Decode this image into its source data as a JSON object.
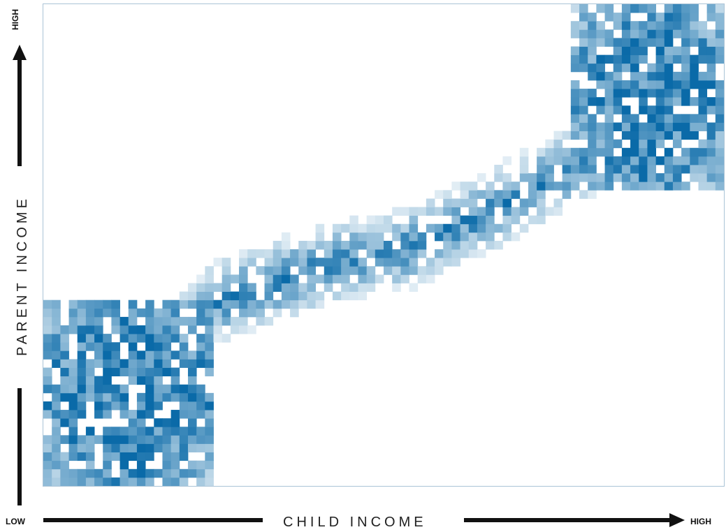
{
  "chart_data": {
    "type": "heatmap",
    "title": "",
    "xlabel": "CHILD INCOME",
    "ylabel": "PARENT INCOME",
    "x_low_label": "LOW",
    "x_high_label": "HIGH",
    "y_high_label": "HIGH",
    "xlim": [
      0,
      100
    ],
    "ylim": [
      0,
      100
    ],
    "grid": false,
    "legend": "none",
    "colormap": {
      "low": "#ffffff",
      "high": "#0a6aa8"
    },
    "bins": {
      "x": 80,
      "y": 57
    },
    "density_ridge": [
      {
        "x": 0,
        "y": 18
      },
      {
        "x": 12,
        "y": 20
      },
      {
        "x": 25,
        "y": 38
      },
      {
        "x": 40,
        "y": 45
      },
      {
        "x": 55,
        "y": 50
      },
      {
        "x": 70,
        "y": 60
      },
      {
        "x": 82,
        "y": 70
      },
      {
        "x": 92,
        "y": 82
      },
      {
        "x": 100,
        "y": 92
      }
    ],
    "dense_regions": [
      {
        "x_range": [
          0,
          25
        ],
        "y_range": [
          0,
          38
        ],
        "note": "low-income cluster"
      },
      {
        "x_range": [
          78,
          100
        ],
        "y_range": [
          62,
          100
        ],
        "note": "high-income cluster"
      }
    ]
  }
}
